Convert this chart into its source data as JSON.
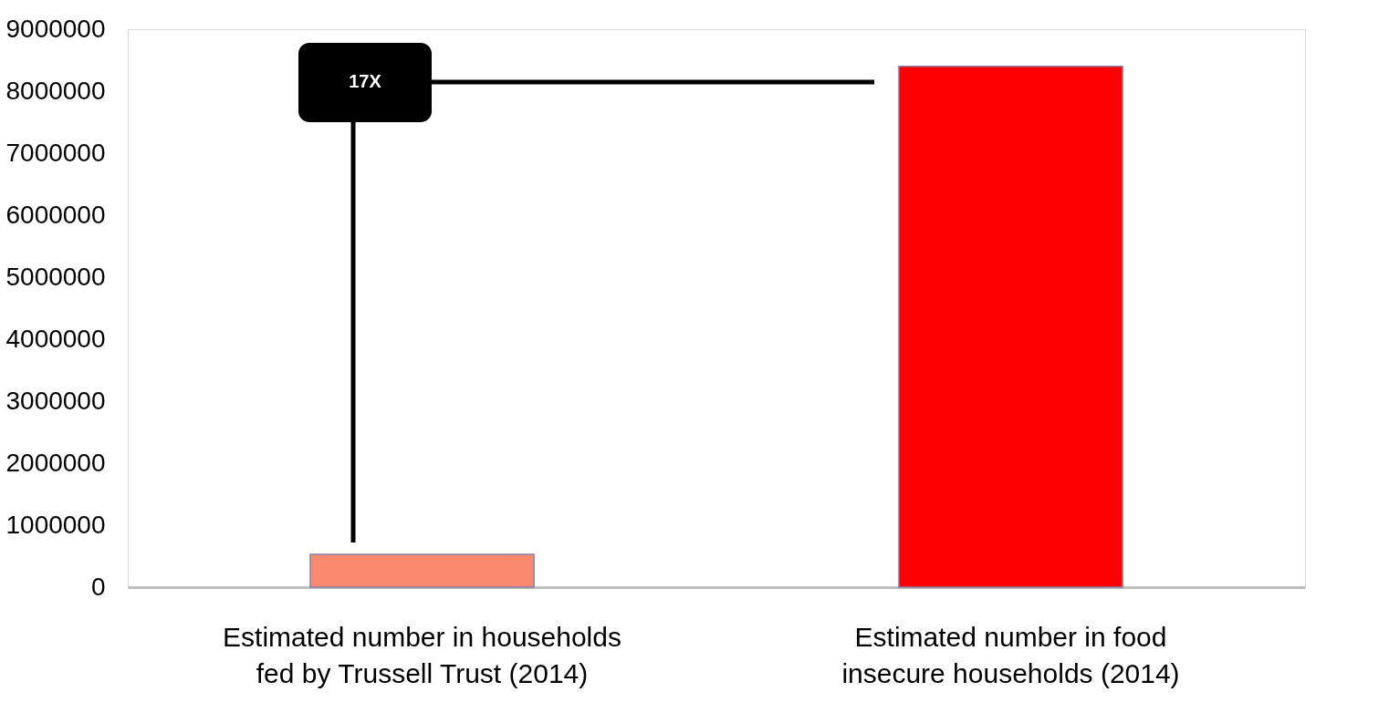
{
  "chart_data": {
    "type": "bar",
    "categories": [
      "Estimated number in households fed by Trussell Trust (2014)",
      "Estimated number in food insecure households (2014)"
    ],
    "values": [
      530000,
      8400000
    ],
    "colors": [
      "#f98a6e",
      "#ff0000"
    ],
    "ylim": [
      0,
      9000000
    ],
    "yticks": [
      0,
      1000000,
      2000000,
      3000000,
      4000000,
      5000000,
      6000000,
      7000000,
      8000000,
      9000000
    ],
    "grid": false,
    "annotations": [
      "17X"
    ]
  }
}
